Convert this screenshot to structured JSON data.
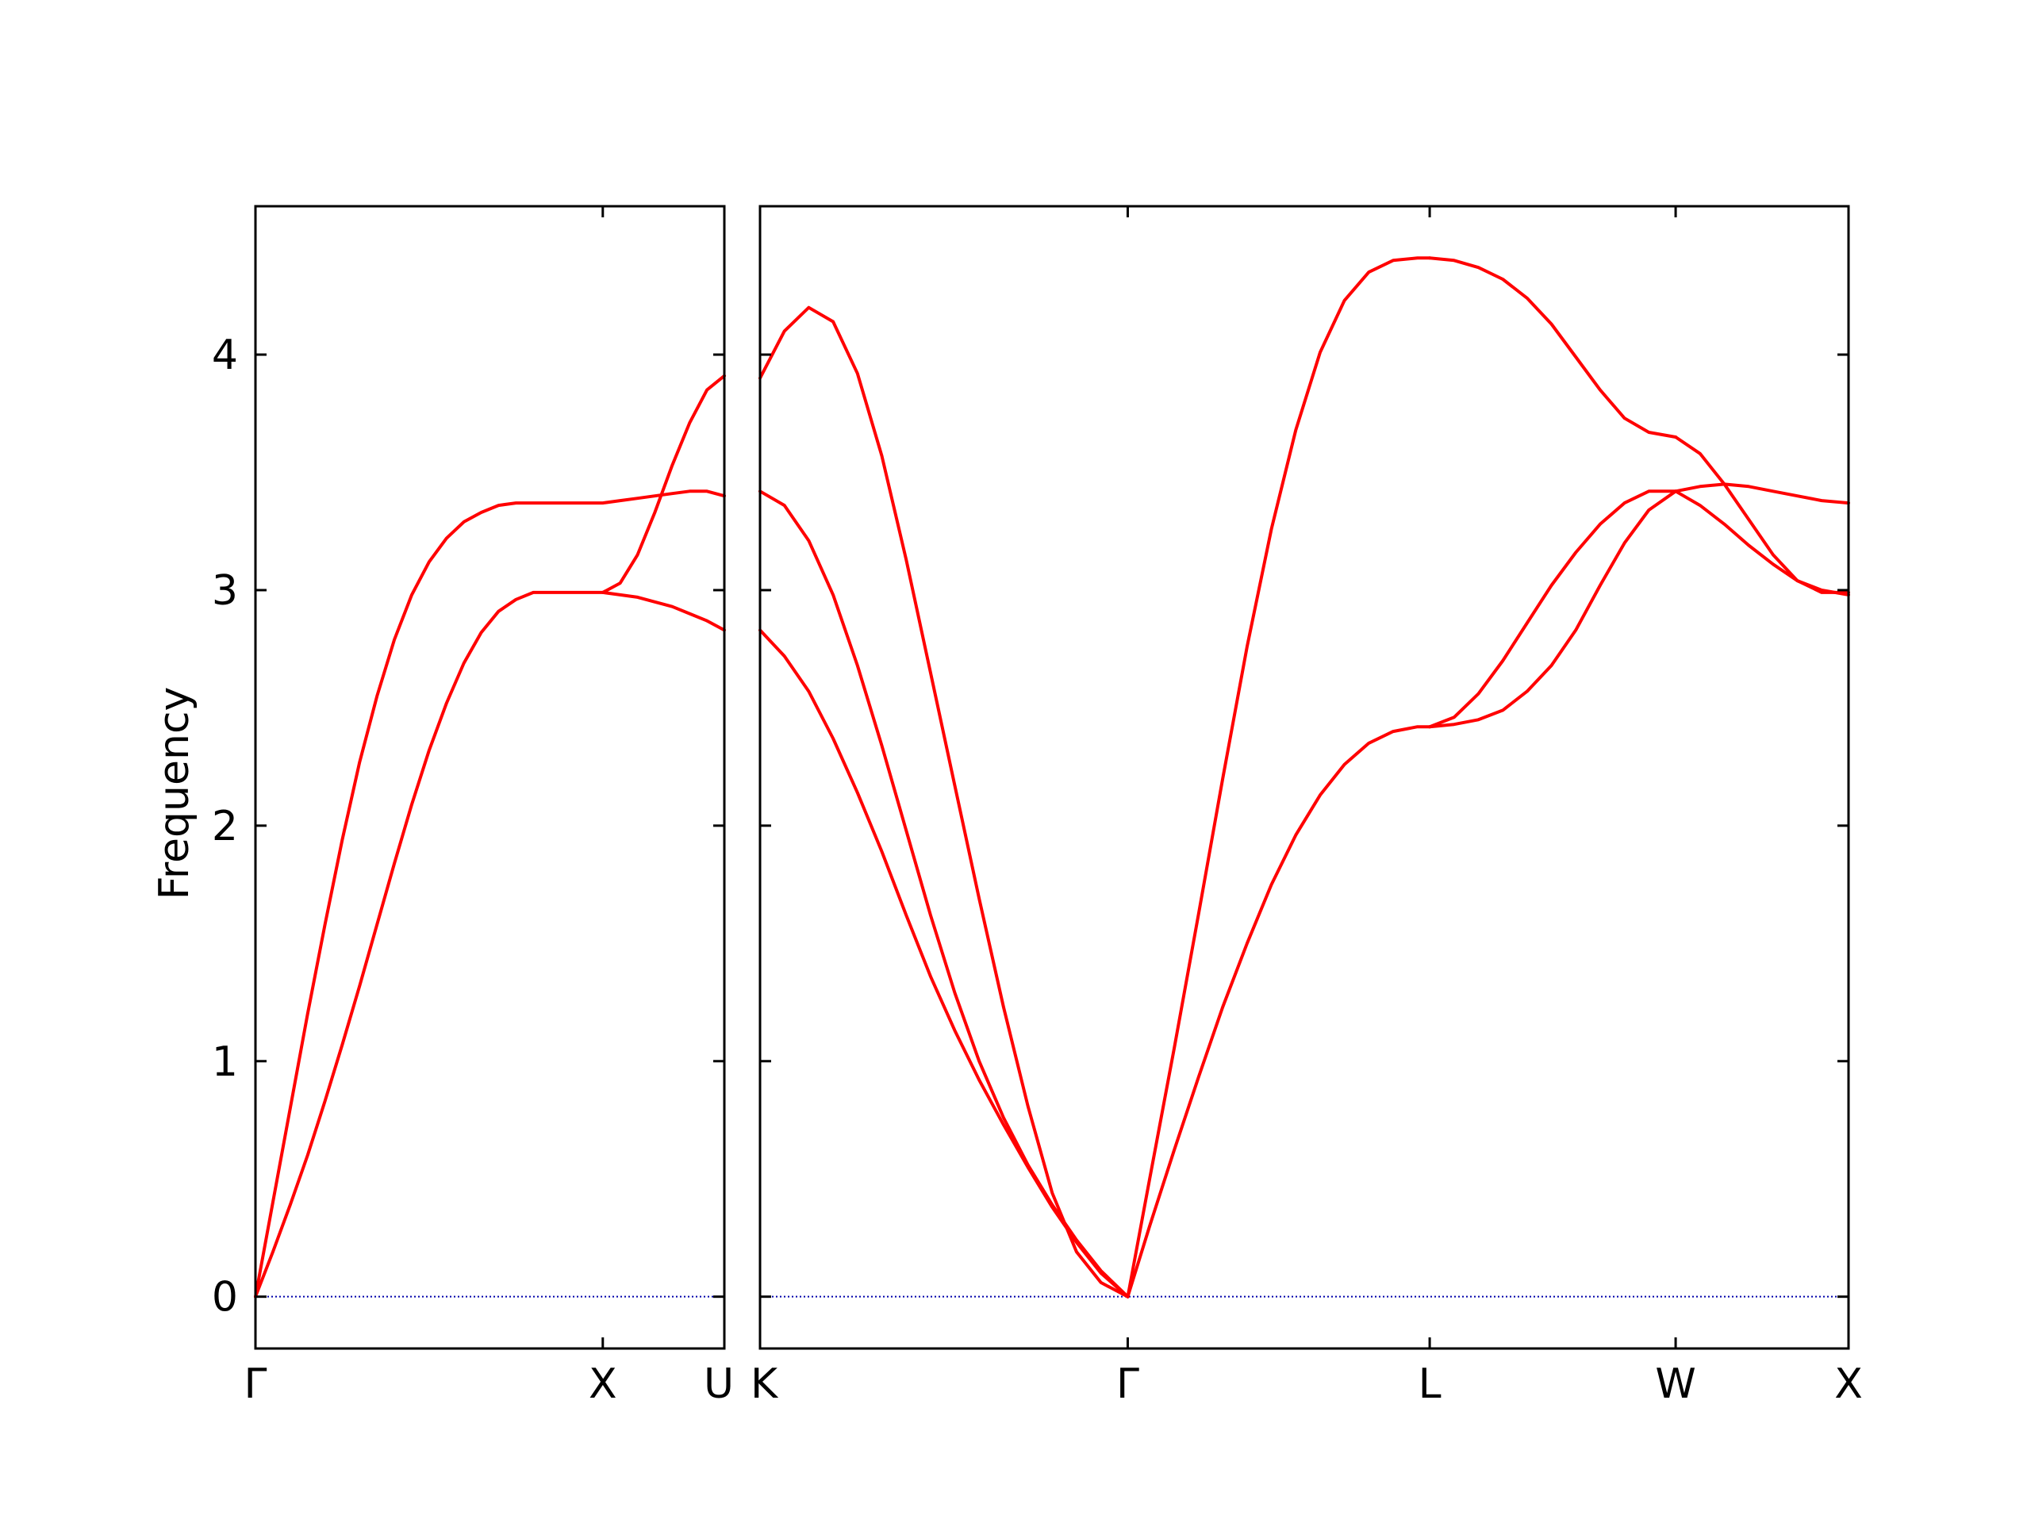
{
  "chart_data": {
    "type": "line",
    "ylabel": "Frequency",
    "ylim": [
      -0.22,
      4.63
    ],
    "yticks": [
      0,
      1,
      2,
      3,
      4
    ],
    "ytick_labels": [
      "0",
      "1",
      "2",
      "3",
      "4"
    ],
    "colors": {
      "band": "#ff0000",
      "zero_line": "#0000aa",
      "axes": "#000000"
    },
    "panels": [
      {
        "name": "left",
        "xlim": [
          0,
          1.35
        ],
        "ticks": [
          {
            "x": 0,
            "label": "Γ"
          },
          {
            "x": 1.0,
            "label": "X"
          },
          {
            "x": 1.35,
            "label": "U"
          }
        ],
        "series": [
          {
            "x": [
              0,
              0.05,
              0.1,
              0.15,
              0.2,
              0.25,
              0.3,
              0.35,
              0.4,
              0.45,
              0.5,
              0.55,
              0.6,
              0.65,
              0.7,
              0.75,
              0.8,
              0.85,
              0.9,
              0.95,
              1.0,
              1.05,
              1.1,
              1.15,
              1.2,
              1.25,
              1.3,
              1.35
            ],
            "y": [
              0,
              0.19,
              0.39,
              0.6,
              0.83,
              1.07,
              1.32,
              1.58,
              1.84,
              2.09,
              2.32,
              2.52,
              2.69,
              2.82,
              2.91,
              2.96,
              2.99,
              2.99,
              2.99,
              2.99,
              2.99,
              2.98,
              2.97,
              2.95,
              2.93,
              2.9,
              2.87,
              2.83
            ]
          },
          {
            "x": [
              0,
              0.05,
              0.1,
              0.15,
              0.2,
              0.25,
              0.3,
              0.35,
              0.4,
              0.45,
              0.5,
              0.55,
              0.6,
              0.65,
              0.7,
              0.75,
              0.8,
              0.85,
              0.9,
              0.95,
              1.0,
              1.05,
              1.1,
              1.15,
              1.2,
              1.25,
              1.3,
              1.35
            ],
            "y": [
              0,
              0.4,
              0.8,
              1.2,
              1.58,
              1.94,
              2.27,
              2.55,
              2.79,
              2.98,
              3.12,
              3.22,
              3.29,
              3.33,
              3.36,
              3.37,
              3.37,
              3.37,
              3.37,
              3.37,
              3.37,
              3.38,
              3.39,
              3.4,
              3.41,
              3.42,
              3.42,
              3.4
            ]
          },
          {
            "x": [
              1.0,
              1.05,
              1.1,
              1.15,
              1.2,
              1.25,
              1.3,
              1.35
            ],
            "y": [
              2.99,
              3.03,
              3.15,
              3.33,
              3.53,
              3.71,
              3.85,
              3.91
            ]
          }
        ]
      },
      {
        "name": "right",
        "xlim": [
          0,
          4.47
        ],
        "ticks": [
          {
            "x": 0,
            "label": "K"
          },
          {
            "x": 1.51,
            "label": "Γ"
          },
          {
            "x": 2.75,
            "label": "L"
          },
          {
            "x": 3.76,
            "label": "W"
          },
          {
            "x": 4.47,
            "label": "X"
          }
        ],
        "series": [
          {
            "x": [
              0,
              0.1,
              0.2,
              0.3,
              0.4,
              0.5,
              0.6,
              0.7,
              0.8,
              0.9,
              1.0,
              1.1,
              1.2,
              1.3,
              1.4,
              1.51
            ],
            "y": [
              2.83,
              2.72,
              2.57,
              2.37,
              2.14,
              1.89,
              1.62,
              1.36,
              1.13,
              0.92,
              0.73,
              0.55,
              0.38,
              0.23,
              0.1,
              0
            ]
          },
          {
            "x": [
              0,
              0.1,
              0.2,
              0.3,
              0.4,
              0.5,
              0.6,
              0.7,
              0.8,
              0.9,
              1.0,
              1.1,
              1.2,
              1.3,
              1.4,
              1.51
            ],
            "y": [
              3.42,
              3.36,
              3.21,
              2.98,
              2.68,
              2.34,
              1.98,
              1.62,
              1.29,
              1.0,
              0.76,
              0.56,
              0.39,
              0.24,
              0.11,
              0
            ]
          },
          {
            "x": [
              0,
              0.1,
              0.2,
              0.3,
              0.4,
              0.5,
              0.6,
              0.7,
              0.8,
              0.9,
              1.0,
              1.1,
              1.2,
              1.3,
              1.4,
              1.51
            ],
            "y": [
              3.9,
              4.1,
              4.2,
              4.14,
              3.92,
              3.57,
              3.13,
              2.65,
              2.17,
              1.69,
              1.23,
              0.81,
              0.44,
              0.19,
              0.06,
              0
            ]
          },
          {
            "x": [
              1.51,
              1.6,
              1.7,
              1.8,
              1.9,
              2.0,
              2.1,
              2.2,
              2.3,
              2.4,
              2.5,
              2.6,
              2.7,
              2.75
            ],
            "y": [
              0,
              0.3,
              0.62,
              0.93,
              1.23,
              1.5,
              1.75,
              1.96,
              2.13,
              2.26,
              2.35,
              2.4,
              2.42,
              2.42
            ]
          },
          {
            "x": [
              1.51,
              1.6,
              1.7,
              1.8,
              1.9,
              2.0,
              2.1,
              2.2,
              2.3,
              2.4,
              2.5,
              2.6,
              2.7,
              2.75
            ],
            "y": [
              0,
              0.5,
              1.05,
              1.62,
              2.2,
              2.76,
              3.26,
              3.68,
              4.01,
              4.23,
              4.35,
              4.4,
              4.41,
              4.41
            ]
          },
          {
            "x": [
              2.75,
              2.85,
              2.95,
              3.05,
              3.15,
              3.25,
              3.35,
              3.45,
              3.55,
              3.65,
              3.76
            ],
            "y": [
              2.42,
              2.43,
              2.45,
              2.49,
              2.57,
              2.68,
              2.83,
              3.02,
              3.2,
              3.34,
              3.42
            ]
          },
          {
            "x": [
              2.75,
              2.85,
              2.95,
              3.05,
              3.15,
              3.25,
              3.35,
              3.45,
              3.55,
              3.65,
              3.76
            ],
            "y": [
              2.42,
              2.46,
              2.56,
              2.7,
              2.86,
              3.02,
              3.16,
              3.28,
              3.37,
              3.42,
              3.42
            ]
          },
          {
            "x": [
              2.75,
              2.85,
              2.95,
              3.05,
              3.15,
              3.25,
              3.35,
              3.45,
              3.55,
              3.65,
              3.76
            ],
            "y": [
              4.41,
              4.4,
              4.37,
              4.32,
              4.24,
              4.13,
              3.99,
              3.85,
              3.73,
              3.67,
              3.65
            ]
          },
          {
            "x": [
              3.76,
              3.86,
              3.96,
              4.06,
              4.16,
              4.26,
              4.36,
              4.47
            ],
            "y": [
              3.42,
              3.44,
              3.45,
              3.44,
              3.42,
              3.4,
              3.38,
              3.37
            ]
          },
          {
            "x": [
              3.76,
              3.86,
              3.96,
              4.06,
              4.16,
              4.26,
              4.36,
              4.47
            ],
            "y": [
              3.42,
              3.36,
              3.28,
              3.19,
              3.11,
              3.04,
              3.0,
              2.98
            ]
          },
          {
            "x": [
              3.76,
              3.86,
              3.96,
              4.06,
              4.16,
              4.26,
              4.36,
              4.47
            ],
            "y": [
              3.65,
              3.58,
              3.45,
              3.3,
              3.15,
              3.04,
              2.99,
              2.99
            ]
          }
        ]
      }
    ]
  }
}
